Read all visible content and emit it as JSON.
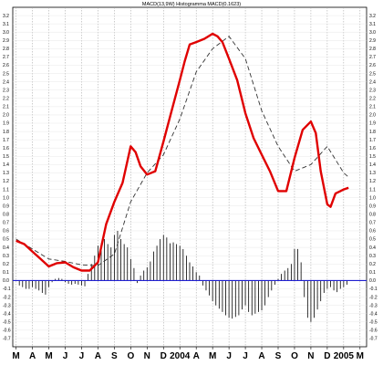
{
  "chart_data": {
    "type": "line",
    "title": "MACD(13,9W) Histogramma MACD(0.1623)",
    "ylim": [
      -0.8,
      3.3
    ],
    "y_ticks": [
      3.2,
      3.1,
      3.0,
      2.9,
      2.8,
      2.7,
      2.6,
      2.5,
      2.4,
      2.3,
      2.2,
      2.1,
      2.0,
      1.9,
      1.8,
      1.7,
      1.6,
      1.5,
      1.4,
      1.3,
      1.2,
      1.1,
      1.0,
      0.9,
      0.8,
      0.7,
      0.6,
      0.5,
      0.4,
      0.3,
      0.2,
      0.1,
      0.0,
      -0.1,
      -0.2,
      -0.3,
      -0.4,
      -0.5,
      -0.6,
      -0.7
    ],
    "y_tick_labels": [
      "3.2",
      "3.1",
      "3.0",
      "2.9",
      "2.8",
      "2.7",
      "2.6",
      "2.5",
      "2.4",
      "2.3",
      "2.2",
      "2.1",
      "2.0",
      "1.9",
      "1.8",
      "1.7",
      "1.6",
      "1.5",
      "1.4",
      "1.3",
      "1.2",
      "1.1",
      "1.0",
      "0.9",
      "0.8",
      "0.7",
      "0.6",
      "0.5",
      "0.4",
      "0.3",
      "0.2",
      "0.1",
      "0.0",
      "-0.1",
      "-0.2",
      "-0.3",
      "-0.4",
      "-0.5",
      "-0.6",
      "-0.7"
    ],
    "x_labels": [
      "M",
      "A",
      "M",
      "J",
      "J",
      "A",
      "S",
      "O",
      "N",
      "D",
      "2004",
      "A",
      "M",
      "J",
      "J",
      "A",
      "S",
      "O",
      "N",
      "D",
      "2005",
      "M"
    ],
    "x_label_positions": [
      0,
      1,
      2,
      3,
      4,
      5,
      6,
      7,
      8,
      9,
      10,
      11,
      12,
      13,
      14,
      15,
      16,
      17,
      18,
      19,
      20,
      21
    ],
    "x_range": [
      -0.2,
      21.4
    ],
    "grid": true,
    "series": [
      {
        "role": "macd",
        "color": "#e00000",
        "x": [
          0,
          0.5,
          1,
          1.5,
          2,
          2.5,
          3,
          3.5,
          4,
          4.5,
          5,
          5.5,
          6,
          6.5,
          7,
          7.3,
          7.6,
          8,
          8.5,
          9,
          9.5,
          10,
          10.3,
          10.6,
          11,
          11.5,
          12,
          12.3,
          12.6,
          13,
          13.5,
          14,
          14.5,
          15,
          15.5,
          16,
          16.5,
          17,
          17.5,
          18,
          18.3,
          18.6,
          19,
          19.2,
          19.5,
          19.8,
          20,
          20.3
        ],
        "y": [
          0.48,
          0.44,
          0.35,
          0.26,
          0.17,
          0.21,
          0.22,
          0.16,
          0.12,
          0.12,
          0.22,
          0.68,
          0.95,
          1.18,
          1.62,
          1.55,
          1.38,
          1.28,
          1.32,
          1.68,
          2.05,
          2.42,
          2.65,
          2.85,
          2.88,
          2.92,
          2.98,
          2.95,
          2.88,
          2.68,
          2.42,
          2.02,
          1.72,
          1.52,
          1.32,
          1.08,
          1.08,
          1.48,
          1.82,
          1.92,
          1.78,
          1.32,
          0.92,
          0.89,
          1.05,
          1.08,
          1.1,
          1.12
        ]
      },
      {
        "role": "signal",
        "color": "#333333",
        "x": [
          0,
          1,
          2,
          3,
          4,
          5,
          6,
          7,
          8,
          9,
          10,
          11,
          12,
          13,
          14,
          15,
          16,
          17,
          18,
          19,
          20,
          20.3
        ],
        "y": [
          0.5,
          0.38,
          0.26,
          0.23,
          0.19,
          0.18,
          0.32,
          0.95,
          1.3,
          1.52,
          1.95,
          2.52,
          2.8,
          2.95,
          2.68,
          2.05,
          1.62,
          1.32,
          1.4,
          1.62,
          1.3,
          1.25
        ]
      },
      {
        "role": "histogram",
        "color": "#000000",
        "x": [
          0.2,
          0.4,
          0.6,
          0.8,
          1.0,
          1.2,
          1.4,
          1.6,
          1.8,
          2.0,
          2.2,
          2.4,
          2.6,
          2.8,
          3.0,
          3.2,
          3.4,
          3.6,
          3.8,
          4.0,
          4.2,
          4.4,
          4.6,
          4.8,
          5.0,
          5.2,
          5.4,
          5.6,
          5.8,
          6.0,
          6.2,
          6.4,
          6.6,
          6.8,
          7.0,
          7.2,
          7.4,
          7.6,
          7.8,
          8.0,
          8.2,
          8.4,
          8.6,
          8.8,
          9.0,
          9.2,
          9.4,
          9.6,
          9.8,
          10.0,
          10.2,
          10.4,
          10.6,
          10.8,
          11.0,
          11.2,
          11.4,
          11.6,
          11.8,
          12.0,
          12.2,
          12.4,
          12.6,
          12.8,
          13.0,
          13.2,
          13.4,
          13.6,
          13.8,
          14.0,
          14.2,
          14.4,
          14.6,
          14.8,
          15.0,
          15.2,
          15.4,
          15.6,
          15.8,
          16.0,
          16.2,
          16.4,
          16.6,
          16.8,
          17.0,
          17.2,
          17.4,
          17.6,
          17.8,
          18.0,
          18.2,
          18.4,
          18.6,
          18.8,
          19.0,
          19.2,
          19.4,
          19.6,
          19.8,
          20.0,
          20.2
        ],
        "y": [
          -0.06,
          -0.08,
          -0.1,
          -0.1,
          -0.08,
          -0.1,
          -0.12,
          -0.15,
          -0.17,
          -0.08,
          -0.02,
          0.02,
          0.03,
          0.02,
          -0.02,
          -0.04,
          -0.05,
          -0.04,
          -0.05,
          -0.06,
          -0.07,
          0.08,
          0.2,
          0.3,
          0.42,
          0.45,
          0.5,
          0.44,
          0.4,
          0.55,
          0.6,
          0.5,
          0.44,
          0.4,
          0.26,
          0.15,
          -0.03,
          0.06,
          0.12,
          0.16,
          0.23,
          0.35,
          0.42,
          0.5,
          0.55,
          0.52,
          0.45,
          0.46,
          0.44,
          0.42,
          0.38,
          0.3,
          0.22,
          0.17,
          0.1,
          0.06,
          -0.06,
          -0.12,
          -0.18,
          -0.25,
          -0.3,
          -0.34,
          -0.38,
          -0.42,
          -0.45,
          -0.46,
          -0.44,
          -0.42,
          -0.35,
          -0.3,
          -0.38,
          -0.42,
          -0.4,
          -0.38,
          -0.36,
          -0.3,
          -0.2,
          -0.12,
          -0.05,
          0.02,
          0.08,
          0.12,
          0.15,
          0.2,
          0.38,
          0.38,
          0.22,
          -0.2,
          -0.45,
          -0.5,
          -0.45,
          -0.35,
          -0.25,
          -0.15,
          -0.1,
          -0.08,
          -0.12,
          -0.14,
          -0.1,
          -0.08,
          -0.05
        ]
      }
    ],
    "zero_line": {
      "value": 0,
      "color": "#2020d0"
    }
  }
}
